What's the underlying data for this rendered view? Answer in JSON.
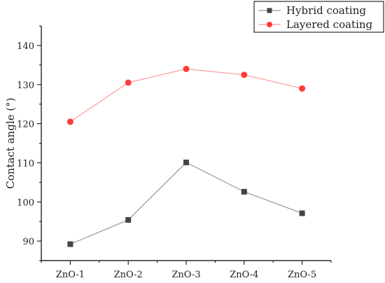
{
  "chart_data": {
    "type": "line",
    "title": "",
    "xlabel": "",
    "ylabel": "Contact angle (°)",
    "categories": [
      "ZnO-1",
      "ZnO-2",
      "ZnO-3",
      "ZnO-4",
      "ZnO-5"
    ],
    "ylim": [
      85,
      145
    ],
    "yticks": [
      90,
      100,
      110,
      120,
      130,
      140
    ],
    "grid": false,
    "legend_position": "top-right",
    "series": [
      {
        "name": "Hybrid coating",
        "marker": "square",
        "marker_color": "#444444",
        "line_color": "#9a9a9a",
        "values": [
          89.2,
          95.4,
          110.1,
          102.6,
          97.1
        ]
      },
      {
        "name": "Layered coating",
        "marker": "circle",
        "marker_color": "#ff3b3b",
        "line_color": "#ff9a9a",
        "values": [
          120.5,
          130.5,
          134.0,
          132.5,
          129.0
        ]
      }
    ]
  }
}
